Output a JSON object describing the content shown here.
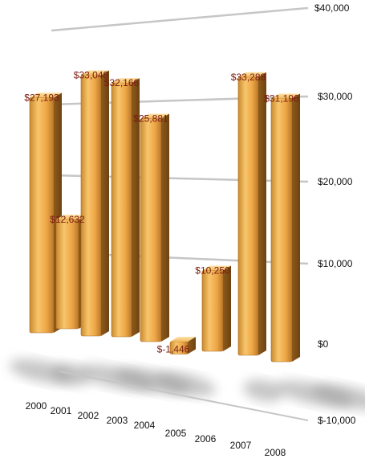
{
  "chart_data": {
    "type": "bar",
    "categories": [
      "2000",
      "2001",
      "2002",
      "2003",
      "2004",
      "2005",
      "2006",
      "2007",
      "2008"
    ],
    "values": [
      27193,
      12632,
      33048,
      32166,
      25881,
      -1446,
      10250,
      33288,
      31196
    ],
    "data_labels": [
      "$27,193",
      "$12,632",
      "$33,048",
      "$32,166",
      "$25,881",
      "$-1,446",
      "$10,250",
      "$33,288",
      "$31,196"
    ],
    "y_ticks": [
      -10000,
      0,
      10000,
      20000,
      30000,
      40000
    ],
    "y_tick_labels": [
      "$-10,000",
      "$0",
      "$10,000",
      "$20,000",
      "$30,000",
      "$40,000"
    ],
    "ylim": [
      -10000,
      40000
    ],
    "grid": true,
    "title": "",
    "xlabel": "",
    "ylabel": "",
    "bar_color": "#f0a848",
    "label_color": "#7a1a10"
  }
}
